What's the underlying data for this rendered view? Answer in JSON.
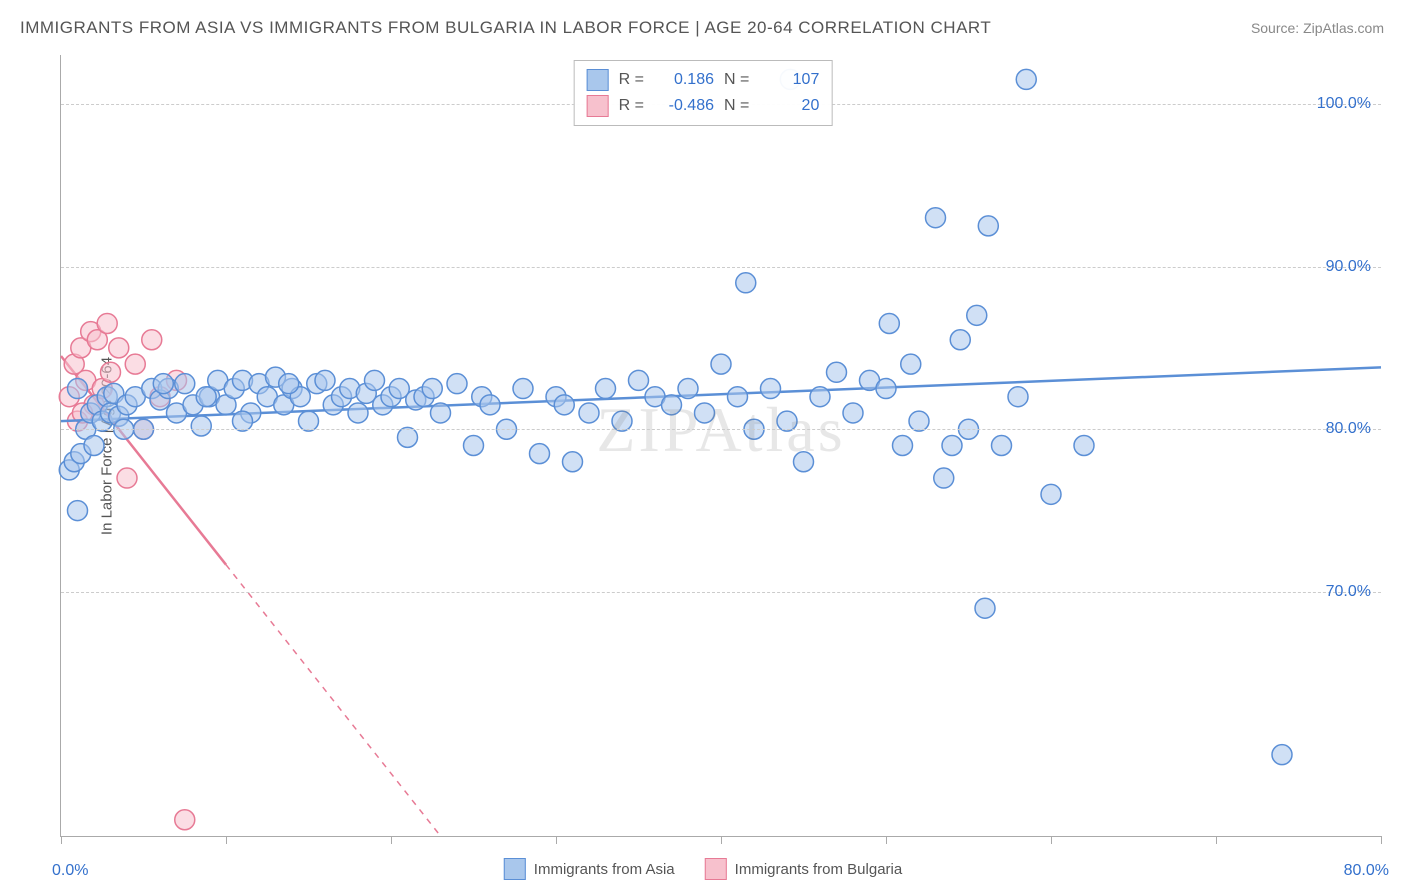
{
  "title": "IMMIGRANTS FROM ASIA VS IMMIGRANTS FROM BULGARIA IN LABOR FORCE | AGE 20-64 CORRELATION CHART",
  "source": "Source: ZipAtlas.com",
  "watermark": "ZIPAtlas",
  "y_axis_title": "In Labor Force | Age 20-64",
  "chart": {
    "type": "scatter",
    "background_color": "#ffffff",
    "grid_color": "#cccccc",
    "axis_color": "#aaaaaa",
    "y_range": [
      55,
      103
    ],
    "y_ticks": [
      70,
      80,
      90,
      100
    ],
    "y_tick_labels": [
      "70.0%",
      "80.0%",
      "90.0%",
      "100.0%"
    ],
    "y_tick_color": "#3370cc",
    "x_range": [
      0,
      80
    ],
    "x_ticks": [
      0,
      10,
      20,
      30,
      40,
      50,
      60,
      70,
      80
    ],
    "x_label_min": "0.0%",
    "x_label_max": "80.0%",
    "x_label_color": "#3370cc",
    "marker_radius": 10,
    "marker_stroke_width": 1.5,
    "line_width": 2.5
  },
  "series": {
    "asia": {
      "label": "Immigrants from Asia",
      "fill": "#a9c7ec",
      "stroke": "#5b8fd6",
      "fill_opacity": 0.55,
      "R": "0.186",
      "N": "107",
      "regression": {
        "x1": 0,
        "y1": 80.5,
        "x2": 80,
        "y2": 83.8,
        "dash_after_x": null
      },
      "points": [
        [
          0.5,
          77.5
        ],
        [
          0.8,
          78
        ],
        [
          1,
          75
        ],
        [
          1.2,
          78.5
        ],
        [
          1.5,
          80
        ],
        [
          1.8,
          81
        ],
        [
          2,
          79
        ],
        [
          2.2,
          81.5
        ],
        [
          2.5,
          80.5
        ],
        [
          2.8,
          82
        ],
        [
          3,
          81
        ],
        [
          3.2,
          82.2
        ],
        [
          3.5,
          80.8
        ],
        [
          4,
          81.5
        ],
        [
          4.5,
          82
        ],
        [
          5,
          80
        ],
        [
          5.5,
          82.5
        ],
        [
          6,
          81.8
        ],
        [
          6.5,
          82.5
        ],
        [
          7,
          81
        ],
        [
          7.5,
          82.8
        ],
        [
          8,
          81.5
        ],
        [
          8.5,
          80.2
        ],
        [
          9,
          82
        ],
        [
          9.5,
          83
        ],
        [
          10,
          81.5
        ],
        [
          10.5,
          82.5
        ],
        [
          11,
          83
        ],
        [
          11.5,
          81
        ],
        [
          12,
          82.8
        ],
        [
          12.5,
          82
        ],
        [
          13,
          83.2
        ],
        [
          13.5,
          81.5
        ],
        [
          14,
          82.5
        ],
        [
          14.5,
          82
        ],
        [
          15,
          80.5
        ],
        [
          15.5,
          82.8
        ],
        [
          16,
          83
        ],
        [
          16.5,
          81.5
        ],
        [
          17,
          82
        ],
        [
          17.5,
          82.5
        ],
        [
          18,
          81
        ],
        [
          18.5,
          82.2
        ],
        [
          19,
          83
        ],
        [
          19.5,
          81.5
        ],
        [
          20,
          82
        ],
        [
          20.5,
          82.5
        ],
        [
          21,
          79.5
        ],
        [
          21.5,
          81.8
        ],
        [
          22,
          82
        ],
        [
          22.5,
          82.5
        ],
        [
          23,
          81
        ],
        [
          24,
          82.8
        ],
        [
          25,
          79
        ],
        [
          25.5,
          82
        ],
        [
          26,
          81.5
        ],
        [
          27,
          80
        ],
        [
          28,
          82.5
        ],
        [
          29,
          78.5
        ],
        [
          30,
          82
        ],
        [
          30.5,
          81.5
        ],
        [
          31,
          78
        ],
        [
          32,
          81
        ],
        [
          33,
          82.5
        ],
        [
          34,
          80.5
        ],
        [
          35,
          83
        ],
        [
          36,
          82
        ],
        [
          37,
          81.5
        ],
        [
          38,
          82.5
        ],
        [
          39,
          81
        ],
        [
          40,
          84
        ],
        [
          41,
          82
        ],
        [
          41.5,
          89
        ],
        [
          42,
          80
        ],
        [
          43,
          82.5
        ],
        [
          44,
          80.5
        ],
        [
          44.2,
          101.5
        ],
        [
          45,
          78
        ],
        [
          46,
          82
        ],
        [
          47,
          83.5
        ],
        [
          48,
          81
        ],
        [
          49,
          83
        ],
        [
          50,
          82.5
        ],
        [
          50.2,
          86.5
        ],
        [
          51,
          79
        ],
        [
          51.5,
          84
        ],
        [
          52,
          80.5
        ],
        [
          53,
          93
        ],
        [
          53.5,
          77
        ],
        [
          54,
          79
        ],
        [
          54.5,
          85.5
        ],
        [
          55,
          80
        ],
        [
          55.5,
          87
        ],
        [
          56,
          69
        ],
        [
          56.2,
          92.5
        ],
        [
          57,
          79
        ],
        [
          58,
          82
        ],
        [
          58.5,
          101.5
        ],
        [
          60,
          76
        ],
        [
          62,
          79
        ],
        [
          74,
          60
        ],
        [
          1,
          82.5
        ],
        [
          3.8,
          80
        ],
        [
          6.2,
          82.8
        ],
        [
          8.8,
          82
        ],
        [
          11,
          80.5
        ],
        [
          13.8,
          82.8
        ]
      ]
    },
    "bulgaria": {
      "label": "Immigrants from Bulgaria",
      "fill": "#f7c1cd",
      "stroke": "#e77a95",
      "fill_opacity": 0.55,
      "R": "-0.486",
      "N": "20",
      "regression": {
        "x1": 0,
        "y1": 84.5,
        "x2": 23,
        "y2": 55,
        "dash_after_x": 10
      },
      "points": [
        [
          0.5,
          82
        ],
        [
          0.8,
          84
        ],
        [
          1,
          80.5
        ],
        [
          1.2,
          85
        ],
        [
          1.5,
          83
        ],
        [
          1.8,
          86
        ],
        [
          2,
          81.5
        ],
        [
          2.2,
          85.5
        ],
        [
          2.5,
          82.5
        ],
        [
          2.8,
          86.5
        ],
        [
          3,
          83.5
        ],
        [
          3.5,
          85
        ],
        [
          4,
          77
        ],
        [
          4.5,
          84
        ],
        [
          5,
          80
        ],
        [
          5.5,
          85.5
        ],
        [
          6,
          82
        ],
        [
          7,
          83
        ],
        [
          7.5,
          56
        ],
        [
          1.3,
          81
        ]
      ]
    }
  },
  "correlation_legend": {
    "r_label": "R =",
    "n_label": "N =",
    "value_color": "#3370cc",
    "text_color": "#555555"
  }
}
